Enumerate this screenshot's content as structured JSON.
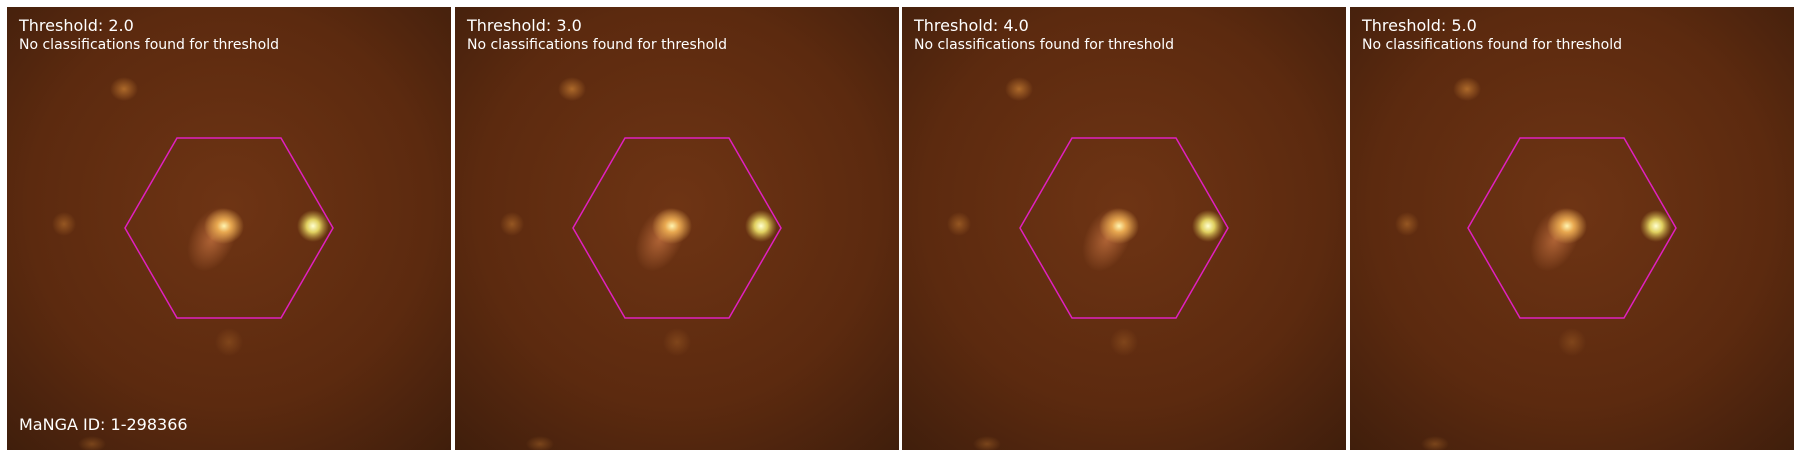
{
  "panels": [
    {
      "threshold_label": "Threshold: 2.0",
      "status": "No classifications found for threshold"
    },
    {
      "threshold_label": "Threshold: 3.0",
      "status": "No classifications found for threshold"
    },
    {
      "threshold_label": "Threshold: 4.0",
      "status": "No classifications found for threshold"
    },
    {
      "threshold_label": "Threshold: 5.0",
      "status": "No classifications found for threshold"
    }
  ],
  "manga_id": "MaNGA ID: 1-298366",
  "colors": {
    "background": "#5a2a10",
    "hexagon": "#e020c0",
    "text": "#ffffff"
  }
}
